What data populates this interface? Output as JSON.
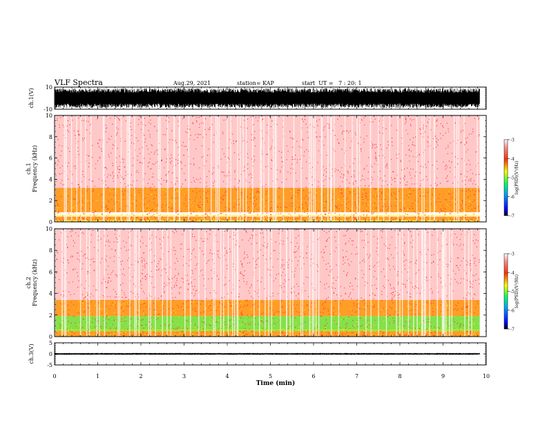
{
  "header": {
    "title": "VLF Spectra",
    "date": "Aug.29, 2021",
    "station": "station= KAP",
    "start_time": "start  UT =   7 : 20: 1"
  },
  "colors": {
    "spectro_weak": "#ff3b3b",
    "spectro_mid": "#ff8c00",
    "spectro_strong": "#ffee00",
    "spectro_peak": "#6fdc2a",
    "waveform": "#000000"
  },
  "chart_data": [
    {
      "type": "line",
      "name": "channel-1-waveform",
      "ylabel": "ch.1(V)",
      "ylim": [
        -10,
        10
      ],
      "y_ticks": [
        "10",
        "-10"
      ],
      "xlim": [
        0,
        10
      ],
      "envelope": {
        "upper": 9,
        "lower": -9
      }
    },
    {
      "type": "heatmap",
      "name": "channel-1-spectrogram",
      "ylabel": "ch.1\nFrequency (kHz)",
      "ylim": [
        0,
        10
      ],
      "y_ticks": [
        "0",
        "2",
        "4",
        "6",
        "8",
        "10"
      ],
      "xlim": [
        0,
        10
      ],
      "data_end_min": 9.85,
      "bands": [
        {
          "f_low": 0.0,
          "f_high": 0.15,
          "level": "strong"
        },
        {
          "f_low": 0.15,
          "f_high": 0.5,
          "level": "mid"
        },
        {
          "f_low": 0.9,
          "f_high": 2.0,
          "level": "mid"
        },
        {
          "f_low": 2.0,
          "f_high": 3.2,
          "level": "mid"
        },
        {
          "f_low": 3.2,
          "f_high": 10.0,
          "level": "weak"
        }
      ],
      "colorbar": {
        "label": "log(PSD)(V²/Hz)",
        "ticks": [
          "-3",
          "-4",
          "-5",
          "-6",
          "-7"
        ],
        "range": [
          -7,
          -3
        ]
      }
    },
    {
      "type": "heatmap",
      "name": "channel-2-spectrogram",
      "ylabel": "ch.2\nFrequency (kHz)",
      "ylim": [
        0,
        10
      ],
      "y_ticks": [
        "0",
        "2",
        "4",
        "6",
        "8",
        "10"
      ],
      "xlim": [
        0,
        10
      ],
      "data_end_min": 9.85,
      "bands": [
        {
          "f_low": 0.0,
          "f_high": 0.5,
          "level": "mid"
        },
        {
          "f_low": 0.5,
          "f_high": 1.9,
          "level": "peak"
        },
        {
          "f_low": 1.9,
          "f_high": 3.4,
          "level": "mid"
        },
        {
          "f_low": 3.4,
          "f_high": 10.0,
          "level": "weak"
        }
      ],
      "colorbar": {
        "label": "log(PSD)(V²/Hz)",
        "ticks": [
          "-3",
          "-4",
          "-5",
          "-6",
          "-7"
        ],
        "range": [
          -7,
          -3
        ]
      }
    },
    {
      "type": "line",
      "name": "channel-3-waveform",
      "ylabel": "ch.3(V)",
      "ylim": [
        -5,
        5
      ],
      "y_ticks": [
        "5",
        "0",
        "-5"
      ],
      "xlim": [
        0,
        10
      ],
      "envelope": {
        "upper": 0.4,
        "lower": -0.4
      }
    }
  ],
  "x_axis": {
    "label": "Time (min)",
    "ticks": [
      "0",
      "1",
      "2",
      "3",
      "4",
      "5",
      "6",
      "7",
      "8",
      "9",
      "10"
    ]
  }
}
